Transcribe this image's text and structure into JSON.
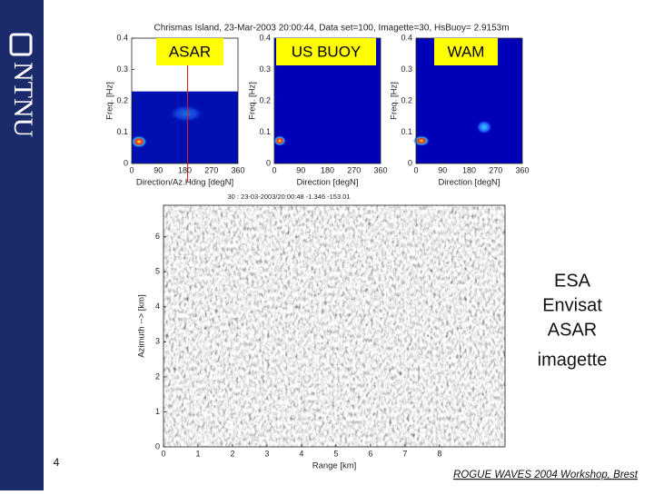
{
  "logo": "NTNU",
  "figure": {
    "title": "Chrismas Island, 23-Mar-2003 20:00:44, Data set=100, Imagette=30, HsBuoy= 2.9153m",
    "panels": [
      {
        "label": "ASAR",
        "x_label": "Direction/Az.Hdng [degN]",
        "y_label": "Freq. [Hz]",
        "xlim": [
          0,
          360
        ],
        "ylim": [
          0,
          0.4
        ],
        "xticks": [
          0,
          90,
          180,
          270,
          360
        ],
        "yticks": [
          0,
          0.1,
          0.2,
          0.3,
          0.4
        ]
      },
      {
        "label": "US BUOY",
        "x_label": "Direction [degN]",
        "y_label": "Freq. [Hz]",
        "xlim": [
          0,
          360
        ],
        "ylim": [
          0,
          0.4
        ],
        "xticks": [
          0,
          90,
          180,
          270,
          360
        ],
        "yticks": [
          0,
          0.1,
          0.2,
          0.3,
          0.4
        ]
      },
      {
        "label": "WAM",
        "x_label": "Direction [degN]",
        "y_label": "Freq. [Hz]",
        "xlim": [
          0,
          360
        ],
        "ylim": [
          0,
          0.4
        ],
        "xticks": [
          0,
          90,
          180,
          270,
          360
        ],
        "yticks": [
          0,
          0.1,
          0.2,
          0.3,
          0.4
        ]
      }
    ],
    "imagette": {
      "caption": "30 : 23-03-2003/20:00:48 -1.346 -153.01",
      "x_label": "Range [km]",
      "y_label": "Azimuth --> [km]",
      "xlim": [
        0,
        9.9
      ],
      "ylim": [
        0,
        6.9
      ],
      "xticks": [
        0,
        1,
        2,
        3,
        4,
        5,
        6,
        7,
        8
      ],
      "yticks": [
        0,
        1,
        2,
        3,
        4,
        5,
        6
      ]
    }
  },
  "side_text": [
    "ESA",
    "Envisat",
    "ASAR",
    "imagette"
  ],
  "page_number": 4,
  "footer": "ROGUE WAVES 2004 Workshop, Brest"
}
